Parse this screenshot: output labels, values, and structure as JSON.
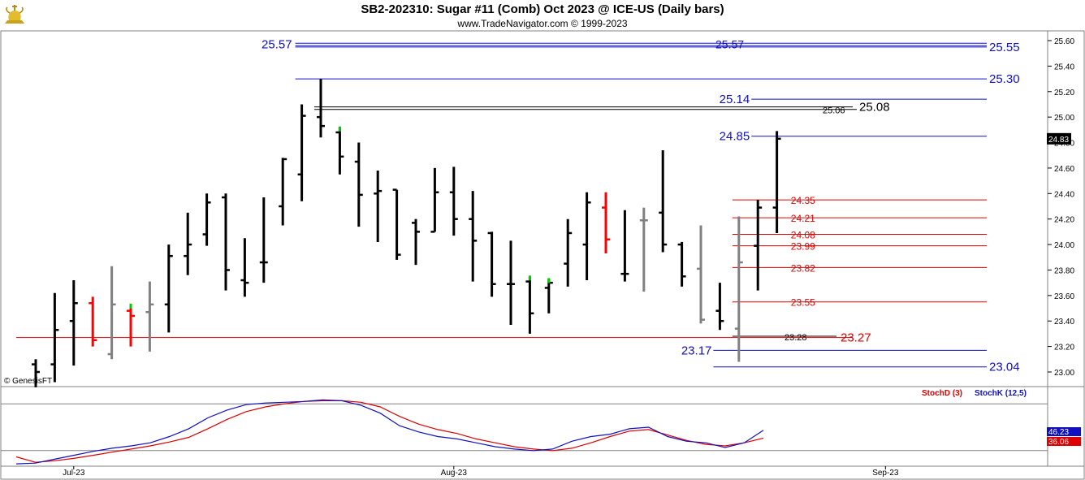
{
  "header": {
    "title": "SB2-202310:  Sugar #11 (Comb) Oct 2023 @ ICE-US  (Daily bars)",
    "subtitle": "www.TradeNavigator.com © 1999-2023",
    "logo_icon": "gold-bull-logo-icon"
  },
  "watermark": "© GenesisFT",
  "chart_data": [
    {
      "type": "ohlc",
      "name": "price",
      "y_axis": {
        "ticks": [
          "25.60",
          "25.40",
          "25.20",
          "25.00",
          "24.80",
          "24.60",
          "24.40",
          "24.20",
          "24.00",
          "23.80",
          "23.60",
          "23.40",
          "23.20",
          "23.00"
        ],
        "ylim": [
          22.9,
          25.65
        ],
        "last_price": "24.83",
        "last_price_color": "#000000"
      },
      "x_axis": {
        "labels": [
          {
            "label": "Jul-23",
            "date": "2023-07-03"
          },
          {
            "label": "Aug-23",
            "date": "2023-08-01"
          },
          {
            "label": "Sep-23",
            "date": "2023-09-01"
          }
        ]
      },
      "colors": {
        "up": "#000000",
        "neutral": "#808080",
        "red": "#ff0000",
        "green": "#00cc00"
      },
      "bars": [
        {
          "date": "2023-06-29",
          "o": 23.06,
          "h": 23.1,
          "l": 22.88,
          "c": 23.0,
          "color": "black"
        },
        {
          "date": "2023-06-30",
          "o": 23.06,
          "h": 23.62,
          "l": 22.92,
          "c": 23.33,
          "color": "black"
        },
        {
          "date": "2023-07-03",
          "o": 23.4,
          "h": 23.72,
          "l": 23.05,
          "c": 23.54,
          "color": "black"
        },
        {
          "date": "2023-07-05",
          "o": 23.54,
          "h": 23.59,
          "l": 23.2,
          "c": 23.25,
          "color": "red"
        },
        {
          "date": "2023-07-06",
          "o": 23.14,
          "h": 23.83,
          "l": 23.1,
          "c": 23.53,
          "color": "gray"
        },
        {
          "date": "2023-07-07",
          "o": 23.48,
          "h": 23.53,
          "l": 23.2,
          "c": 23.44,
          "color": "red",
          "mark": "green"
        },
        {
          "date": "2023-07-10",
          "o": 23.47,
          "h": 23.71,
          "l": 23.16,
          "c": 23.53,
          "color": "gray"
        },
        {
          "date": "2023-07-11",
          "o": 23.53,
          "h": 24.0,
          "l": 23.31,
          "c": 23.91,
          "color": "black"
        },
        {
          "date": "2023-07-12",
          "o": 23.91,
          "h": 24.25,
          "l": 23.76,
          "c": 24.0,
          "color": "black"
        },
        {
          "date": "2023-07-13",
          "o": 24.08,
          "h": 24.4,
          "l": 23.99,
          "c": 24.33,
          "color": "black"
        },
        {
          "date": "2023-07-14",
          "o": 24.37,
          "h": 24.4,
          "l": 23.64,
          "c": 23.8,
          "color": "black"
        },
        {
          "date": "2023-07-17",
          "o": 23.72,
          "h": 24.05,
          "l": 23.59,
          "c": 23.7,
          "color": "black"
        },
        {
          "date": "2023-07-18",
          "o": 23.86,
          "h": 24.37,
          "l": 23.7,
          "c": 23.86,
          "color": "black"
        },
        {
          "date": "2023-07-19",
          "o": 24.3,
          "h": 24.68,
          "l": 24.15,
          "c": 24.67,
          "color": "black"
        },
        {
          "date": "2023-07-20",
          "o": 24.55,
          "h": 25.1,
          "l": 24.34,
          "c": 25.01,
          "color": "black"
        },
        {
          "date": "2023-07-21",
          "o": 25.0,
          "h": 25.3,
          "l": 24.84,
          "c": 24.93,
          "color": "black"
        },
        {
          "date": "2023-07-24",
          "o": 24.88,
          "h": 24.92,
          "l": 24.55,
          "c": 24.69,
          "color": "black",
          "mark": "green"
        },
        {
          "date": "2023-07-25",
          "o": 24.65,
          "h": 24.8,
          "l": 24.14,
          "c": 24.39,
          "color": "black"
        },
        {
          "date": "2023-07-26",
          "o": 24.4,
          "h": 24.58,
          "l": 24.02,
          "c": 24.42,
          "color": "black"
        },
        {
          "date": "2023-07-27",
          "o": 24.43,
          "h": 24.43,
          "l": 23.88,
          "c": 23.92,
          "color": "black"
        },
        {
          "date": "2023-07-28",
          "o": 24.17,
          "h": 24.2,
          "l": 23.84,
          "c": 24.1,
          "color": "black"
        },
        {
          "date": "2023-07-31",
          "o": 24.1,
          "h": 24.6,
          "l": 24.1,
          "c": 24.41,
          "color": "black"
        },
        {
          "date": "2023-08-01",
          "o": 24.41,
          "h": 24.61,
          "l": 24.07,
          "c": 24.2,
          "color": "black"
        },
        {
          "date": "2023-08-02",
          "o": 24.2,
          "h": 24.42,
          "l": 23.71,
          "c": 24.03,
          "color": "black"
        },
        {
          "date": "2023-08-03",
          "o": 24.09,
          "h": 24.1,
          "l": 23.59,
          "c": 23.69,
          "color": "black"
        },
        {
          "date": "2023-08-04",
          "o": 23.69,
          "h": 24.03,
          "l": 23.37,
          "c": 23.69,
          "color": "black"
        },
        {
          "date": "2023-08-07",
          "o": 23.71,
          "h": 23.75,
          "l": 23.3,
          "c": 23.46,
          "color": "black",
          "mark": "green"
        },
        {
          "date": "2023-08-08",
          "o": 23.66,
          "h": 23.73,
          "l": 23.46,
          "c": 23.7,
          "color": "black",
          "mark": "green"
        },
        {
          "date": "2023-08-09",
          "o": 23.85,
          "h": 24.2,
          "l": 23.67,
          "c": 24.09,
          "color": "black"
        },
        {
          "date": "2023-08-10",
          "o": 24.0,
          "h": 24.41,
          "l": 23.72,
          "c": 24.33,
          "color": "black"
        },
        {
          "date": "2023-08-11",
          "o": 24.29,
          "h": 24.41,
          "l": 23.93,
          "c": 24.04,
          "color": "red"
        },
        {
          "date": "2023-08-14",
          "o": 23.77,
          "h": 24.27,
          "l": 23.71,
          "c": 23.77,
          "color": "black"
        },
        {
          "date": "2023-08-15",
          "o": 24.19,
          "h": 24.29,
          "l": 23.63,
          "c": 24.19,
          "color": "gray"
        },
        {
          "date": "2023-08-16",
          "o": 24.25,
          "h": 24.74,
          "l": 23.94,
          "c": 24.0,
          "color": "black"
        },
        {
          "date": "2023-08-17",
          "o": 24.0,
          "h": 24.02,
          "l": 23.67,
          "c": 23.75,
          "color": "black"
        },
        {
          "date": "2023-08-18",
          "o": 23.81,
          "h": 24.15,
          "l": 23.38,
          "c": 23.41,
          "color": "gray"
        },
        {
          "date": "2023-08-21",
          "o": 23.48,
          "h": 23.7,
          "l": 23.33,
          "c": 23.4,
          "color": "black"
        },
        {
          "date": "2023-08-22",
          "o": 23.34,
          "h": 24.22,
          "l": 23.08,
          "c": 23.86,
          "color": "gray"
        },
        {
          "date": "2023-08-23",
          "o": 23.99,
          "h": 24.35,
          "l": 23.64,
          "c": 24.29,
          "color": "black"
        },
        {
          "date": "2023-08-24",
          "o": 24.29,
          "h": 24.89,
          "l": 24.09,
          "c": 24.83,
          "color": "black"
        }
      ],
      "levels": [
        {
          "value": 25.57,
          "label": "25.57",
          "label2": "25.57",
          "color": "#1010c0",
          "style": "double",
          "from": "2023-07-20"
        },
        {
          "value": 25.55,
          "label": "25.55",
          "color": "#1010c0",
          "from": "2023-07-20"
        },
        {
          "value": 25.3,
          "label": "25.30",
          "color": "#1010c0",
          "from": "2023-07-20"
        },
        {
          "value": 25.14,
          "label": "25.14",
          "color": "#1010c0",
          "from": "2023-08-23",
          "label_side": "start"
        },
        {
          "value": 25.08,
          "label": "25.08",
          "color": "#000000",
          "from": "2023-07-21"
        },
        {
          "value": 25.06,
          "label": "25.06",
          "color": "#000000",
          "from": "2023-07-21",
          "small": true
        },
        {
          "value": 24.85,
          "label": "24.85",
          "color": "#1010c0",
          "from": "2023-08-23",
          "label_side": "start"
        },
        {
          "value": 24.35,
          "label": "24.35",
          "color": "#dd0000",
          "from": "2023-08-22"
        },
        {
          "value": 24.21,
          "label": "24.21",
          "color": "#dd0000",
          "from": "2023-08-22"
        },
        {
          "value": 24.08,
          "label": "24.08",
          "color": "#dd0000",
          "from": "2023-08-22"
        },
        {
          "value": 23.99,
          "label": "23.99",
          "color": "#dd0000",
          "from": "2023-08-22"
        },
        {
          "value": 23.82,
          "label": "23.82",
          "color": "#dd0000",
          "from": "2023-08-22"
        },
        {
          "value": 23.55,
          "label": "23.55",
          "color": "#dd0000",
          "from": "2023-08-22"
        },
        {
          "value": 23.28,
          "label": "23.28",
          "color": "#000000",
          "from": "2023-08-22",
          "small": true
        },
        {
          "value": 23.27,
          "label": "23.27",
          "color": "#dd0000",
          "from": "start"
        },
        {
          "value": 23.17,
          "label": "23.17",
          "color": "#1010c0",
          "from": "2023-08-21",
          "label_side": "start"
        },
        {
          "value": 23.04,
          "label": "23.04",
          "color": "#1010c0",
          "from": "2023-08-21"
        }
      ]
    },
    {
      "type": "line",
      "name": "stochastics",
      "ylim": [
        0,
        100
      ],
      "reference_lines": [
        80,
        20
      ],
      "legend": [
        {
          "name": "StochD (3)",
          "color": "#dd0000"
        },
        {
          "name": "StochK (12,5)",
          "color": "#1010c0"
        }
      ],
      "last_values": {
        "k": "46.23",
        "d": "36.06"
      },
      "series": [
        {
          "name": "StochD (3)",
          "color": "#dd0000",
          "values": [
            12,
            5,
            7,
            10,
            14,
            18,
            22,
            26,
            31,
            37,
            48,
            60,
            70,
            76,
            80,
            83,
            84,
            84,
            82,
            76,
            64,
            54,
            47,
            42,
            35,
            30,
            25,
            22,
            20,
            23,
            30,
            38,
            45,
            47,
            40,
            33,
            28,
            26,
            30,
            36
          ]
        },
        {
          "name": "StochK (12,5)",
          "color": "#1010c0",
          "values": [
            3,
            4,
            9,
            14,
            19,
            23,
            26,
            30,
            38,
            48,
            62,
            72,
            79,
            81,
            82,
            83,
            85,
            84,
            78,
            68,
            52,
            44,
            38,
            35,
            30,
            25,
            22,
            20,
            22,
            32,
            38,
            41,
            48,
            50,
            38,
            32,
            30,
            24,
            30,
            46
          ]
        }
      ]
    }
  ]
}
